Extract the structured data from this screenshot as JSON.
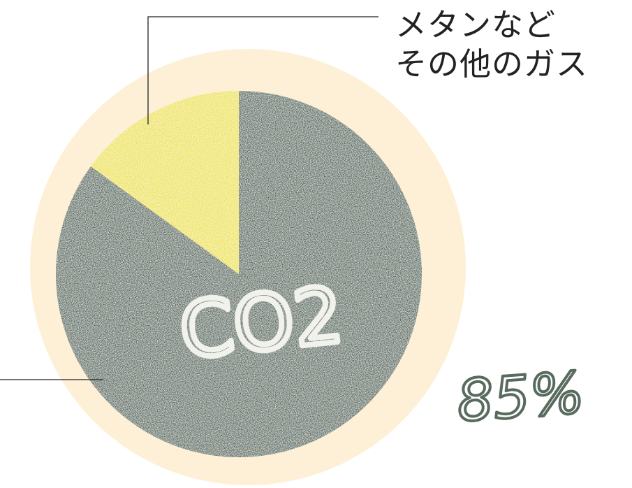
{
  "chart_data": {
    "type": "pie",
    "slices": [
      {
        "label": "CO2",
        "value": 85,
        "value_label": "85%",
        "color": "#586b5e"
      },
      {
        "label_lines": [
          "メタンなど",
          "その他のガス"
        ],
        "value": 15,
        "color": "#eee348"
      }
    ],
    "background_color": "#fdf0d6",
    "label_color": "#586b5e",
    "text_color": "#222222"
  }
}
